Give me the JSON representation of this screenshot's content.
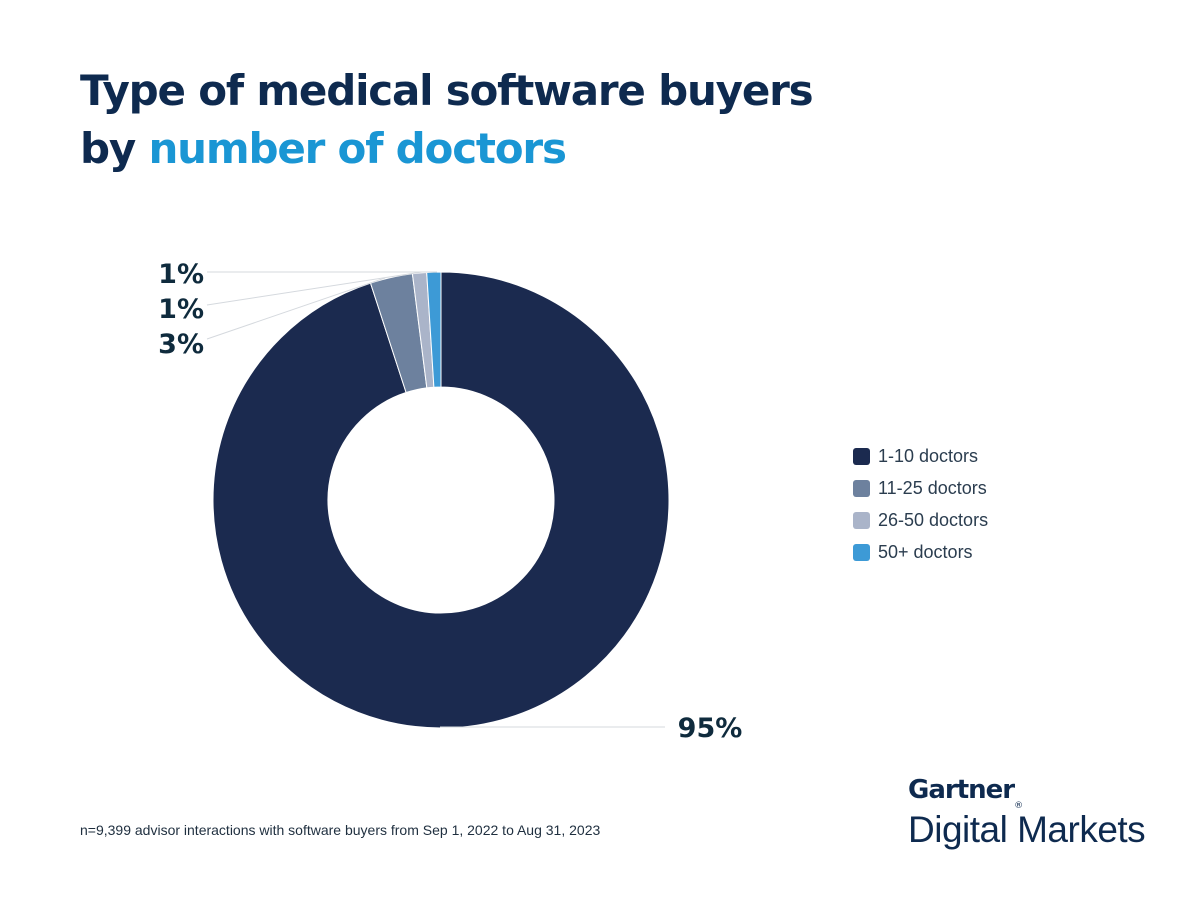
{
  "header": {
    "title_line1": "Type of medical software buyers",
    "title_prefix": "by",
    "title_accent": "number of doctors"
  },
  "chart_data": {
    "type": "pie",
    "variant": "donut",
    "series": [
      {
        "name": "1-10 doctors",
        "value": 95,
        "label": "95%",
        "color": "#1b2a4f"
      },
      {
        "name": "11-25 doctors",
        "value": 3,
        "label": "3%",
        "color": "#6d819e"
      },
      {
        "name": "26-50 doctors",
        "value": 1,
        "label": "1%",
        "color": "#aab4c9"
      },
      {
        "name": "50+ doctors",
        "value": 1,
        "label": "1%",
        "color": "#3d9ad6"
      }
    ],
    "legend_position": "right"
  },
  "footnote": "n=9,399 advisor interactions with software buyers from Sep 1, 2022 to Aug 31, 2023",
  "logo": {
    "brand": "Gartner",
    "mark": "®",
    "product": "Digital Markets"
  }
}
